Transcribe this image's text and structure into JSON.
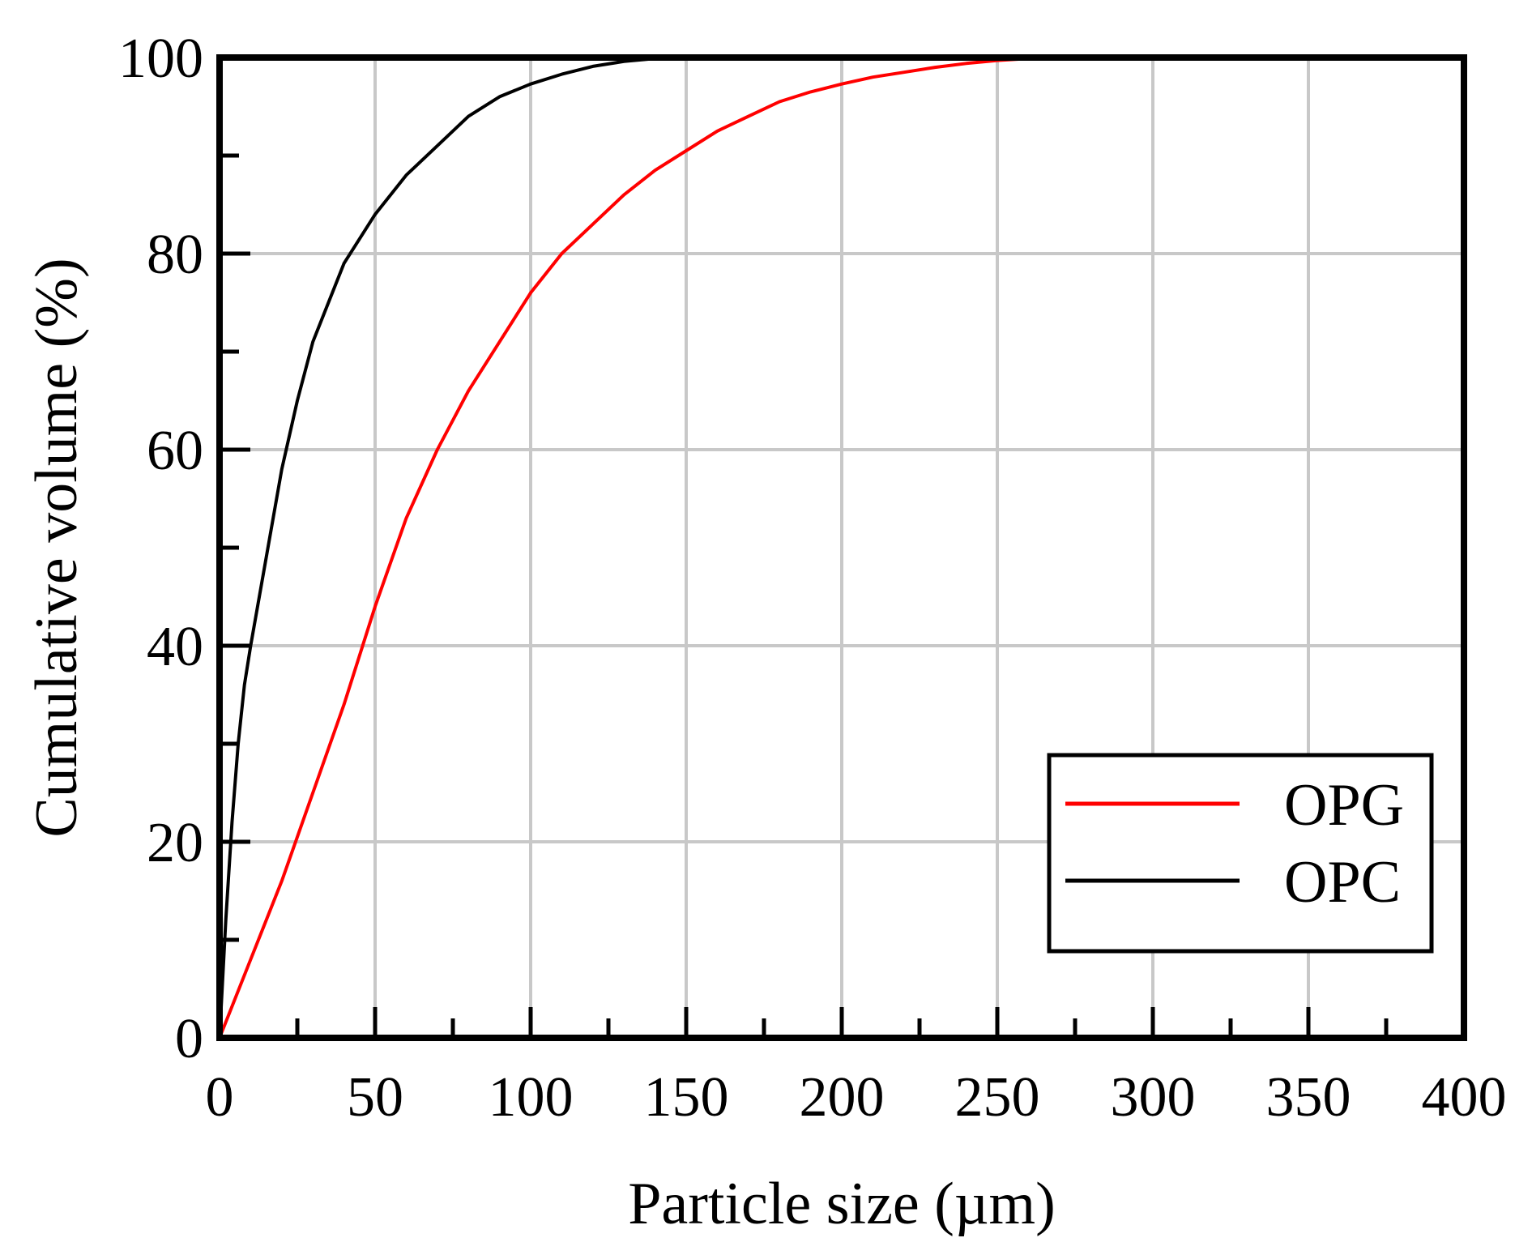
{
  "chart_data": {
    "type": "line",
    "title": "",
    "xlabel": "Particle size (µm)",
    "ylabel": "Cumulative volume (%)",
    "xlim": [
      0,
      400
    ],
    "ylim": [
      0,
      100
    ],
    "xticks": [
      0,
      50,
      100,
      150,
      200,
      250,
      300,
      350,
      400
    ],
    "yticks": [
      0,
      20,
      40,
      60,
      80,
      100
    ],
    "grid": true,
    "legend_position": "lower-right",
    "series": [
      {
        "name": "OPG",
        "color": "#ff0000",
        "x": [
          0,
          10,
          20,
          30,
          40,
          50,
          60,
          70,
          80,
          90,
          100,
          110,
          120,
          130,
          140,
          150,
          160,
          170,
          180,
          190,
          200,
          210,
          220,
          230,
          240,
          250,
          260,
          270,
          275
        ],
        "y": [
          0,
          8,
          16,
          25,
          34,
          44,
          53,
          60,
          66,
          71,
          76,
          80,
          83,
          86,
          88.5,
          90.5,
          92.5,
          94,
          95.5,
          96.5,
          97.3,
          98,
          98.5,
          99,
          99.4,
          99.7,
          99.9,
          100,
          100
        ]
      },
      {
        "name": "OPC",
        "color": "#000000",
        "x": [
          0,
          2,
          4,
          6,
          8,
          10,
          15,
          20,
          25,
          30,
          35,
          40,
          50,
          60,
          70,
          80,
          90,
          100,
          110,
          120,
          130,
          140,
          150
        ],
        "y": [
          0,
          12,
          22,
          30,
          36,
          40,
          49,
          58,
          65,
          71,
          75,
          79,
          84,
          88,
          91,
          94,
          96,
          97.3,
          98.3,
          99.1,
          99.6,
          99.9,
          100
        ]
      }
    ]
  }
}
